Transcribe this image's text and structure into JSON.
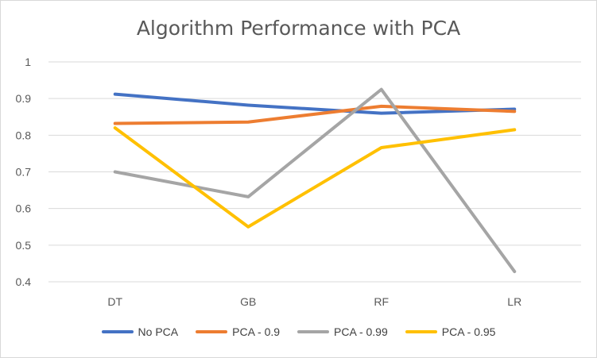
{
  "chart_data": {
    "type": "line",
    "title": "Algorithm Performance with PCA",
    "xlabel": "",
    "ylabel": "",
    "categories": [
      "DT",
      "GB",
      "RF",
      "LR"
    ],
    "ylim": [
      0.4,
      1
    ],
    "yticks": [
      "0.4",
      "0.5",
      "0.6",
      "0.7",
      "0.8",
      "0.9",
      "1"
    ],
    "grid": true,
    "legend_position": "bottom",
    "series": [
      {
        "name": "No PCA",
        "color": "#4472C4",
        "values": [
          0.912,
          0.882,
          0.86,
          0.871
        ]
      },
      {
        "name": "PCA - 0.9",
        "color": "#ED7D31",
        "values": [
          0.832,
          0.836,
          0.879,
          0.865
        ]
      },
      {
        "name": "PCA - 0.99",
        "color": "#A5A5A5",
        "values": [
          0.7,
          0.632,
          0.925,
          0.428
        ]
      },
      {
        "name": "PCA - 0.95",
        "color": "#FFC000",
        "values": [
          0.82,
          0.55,
          0.766,
          0.815
        ]
      }
    ]
  }
}
